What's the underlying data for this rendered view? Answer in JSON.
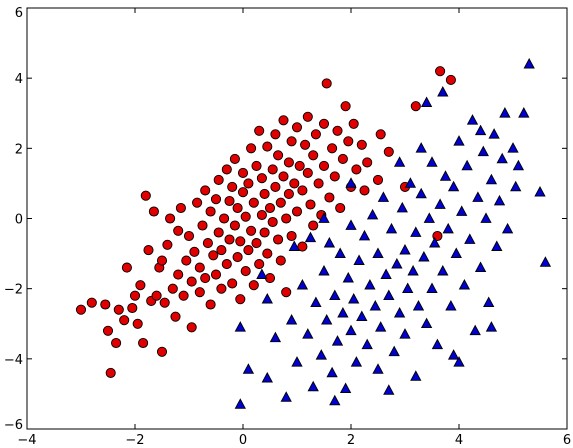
{
  "chart_data": {
    "type": "scatter",
    "title": "",
    "xlabel": "",
    "ylabel": "",
    "xlim": [
      -4,
      6
    ],
    "ylim": [
      -6,
      6
    ],
    "xticks": [
      -4,
      -2,
      0,
      2,
      4,
      6
    ],
    "yticks": [
      -6,
      -4,
      -2,
      0,
      2,
      4,
      6
    ],
    "xtick_labels": [
      "−4",
      "−2",
      "0",
      "2",
      "4",
      "6"
    ],
    "ytick_labels": [
      "−6",
      "−4",
      "−2",
      "0",
      "2",
      "4",
      "6"
    ],
    "grid": false,
    "legend": "none",
    "series": [
      {
        "marker": "circle",
        "color": "#e00000",
        "edge_color": "#000000",
        "points": [
          [
            -3.0,
            -2.6
          ],
          [
            -2.8,
            -2.4
          ],
          [
            -2.55,
            -2.45
          ],
          [
            -2.5,
            -3.2
          ],
          [
            -2.45,
            -4.4
          ],
          [
            -2.35,
            -3.55
          ],
          [
            -2.3,
            -2.6
          ],
          [
            -2.2,
            -2.9
          ],
          [
            -2.15,
            -1.4
          ],
          [
            -2.05,
            -2.55
          ],
          [
            -2.0,
            -2.2
          ],
          [
            -1.95,
            -3.0
          ],
          [
            -1.9,
            -1.9
          ],
          [
            -1.85,
            -3.55
          ],
          [
            -1.8,
            0.65
          ],
          [
            -1.75,
            -0.9
          ],
          [
            -1.7,
            -2.35
          ],
          [
            -1.65,
            0.2
          ],
          [
            -1.6,
            -2.2
          ],
          [
            -1.55,
            -1.4
          ],
          [
            -1.5,
            -1.2
          ],
          [
            -1.5,
            -3.8
          ],
          [
            -1.45,
            -2.4
          ],
          [
            -1.4,
            -0.75
          ],
          [
            -1.35,
            0.0
          ],
          [
            -1.3,
            -2.0
          ],
          [
            -1.25,
            -2.8
          ],
          [
            -1.2,
            -1.6
          ],
          [
            -1.2,
            -0.35
          ],
          [
            -1.15,
            0.3
          ],
          [
            -1.1,
            -2.2
          ],
          [
            -1.05,
            -1.2
          ],
          [
            -1.0,
            -0.5
          ],
          [
            -0.95,
            -3.1
          ],
          [
            -0.95,
            -1.8
          ],
          [
            -0.9,
            -0.95
          ],
          [
            -0.85,
            0.45
          ],
          [
            -0.8,
            -2.1
          ],
          [
            -0.8,
            -1.4
          ],
          [
            -0.75,
            -0.2
          ],
          [
            -0.7,
            0.8
          ],
          [
            -0.7,
            -1.7
          ],
          [
            -0.65,
            -0.7
          ],
          [
            -0.6,
            -2.45
          ],
          [
            -0.6,
            0.2
          ],
          [
            -0.55,
            -1.05
          ],
          [
            -0.5,
            -1.6
          ],
          [
            -0.5,
            0.55
          ],
          [
            -0.45,
            -0.4
          ],
          [
            -0.45,
            1.1
          ],
          [
            -0.4,
            -2.0
          ],
          [
            -0.4,
            -0.9
          ],
          [
            -0.35,
            0.0
          ],
          [
            -0.3,
            1.4
          ],
          [
            -0.3,
            -1.3
          ],
          [
            -0.25,
            -0.6
          ],
          [
            -0.25,
            0.5
          ],
          [
            -0.2,
            -1.85
          ],
          [
            -0.2,
            0.9
          ],
          [
            -0.15,
            -0.2
          ],
          [
            -0.15,
            1.7
          ],
          [
            -0.1,
            -1.1
          ],
          [
            -0.1,
            0.3
          ],
          [
            -0.05,
            -2.3
          ],
          [
            -0.05,
            -0.65
          ],
          [
            0.0,
            0.75
          ],
          [
            0.0,
            1.3
          ],
          [
            0.05,
            -1.5
          ],
          [
            0.05,
            0.05
          ],
          [
            0.1,
            -0.9
          ],
          [
            0.1,
            1.0
          ],
          [
            0.15,
            2.0
          ],
          [
            0.15,
            -0.35
          ],
          [
            0.2,
            -1.9
          ],
          [
            0.2,
            0.45
          ],
          [
            0.25,
            1.5
          ],
          [
            0.25,
            -0.7
          ],
          [
            0.3,
            2.5
          ],
          [
            0.3,
            -1.3
          ],
          [
            0.35,
            0.1
          ],
          [
            0.35,
            1.15
          ],
          [
            0.4,
            -0.4
          ],
          [
            0.4,
            0.7
          ],
          [
            0.45,
            2.05
          ],
          [
            0.45,
            -1.0
          ],
          [
            0.5,
            -1.7
          ],
          [
            0.5,
            0.3
          ],
          [
            0.55,
            1.4
          ],
          [
            0.55,
            -0.1
          ],
          [
            0.6,
            2.4
          ],
          [
            0.6,
            0.9
          ],
          [
            0.65,
            -0.6
          ],
          [
            0.65,
            1.8
          ],
          [
            0.7,
            0.45
          ],
          [
            0.7,
            -1.2
          ],
          [
            0.75,
            1.2
          ],
          [
            0.75,
            2.8
          ],
          [
            0.8,
            0.0
          ],
          [
            0.8,
            -2.1
          ],
          [
            0.85,
            1.6
          ],
          [
            0.85,
            0.7
          ],
          [
            0.9,
            2.2
          ],
          [
            0.9,
            -0.5
          ],
          [
            0.95,
            1.0
          ],
          [
            1.0,
            2.6
          ],
          [
            1.0,
            0.2
          ],
          [
            1.05,
            1.5
          ],
          [
            1.1,
            -0.8
          ],
          [
            1.1,
            0.8
          ],
          [
            1.15,
            2.1
          ],
          [
            1.2,
            1.3
          ],
          [
            1.2,
            2.9
          ],
          [
            1.25,
            0.4
          ],
          [
            1.3,
            1.8
          ],
          [
            1.3,
            -0.2
          ],
          [
            1.35,
            2.4
          ],
          [
            1.4,
            1.0
          ],
          [
            1.45,
            0.1
          ],
          [
            1.5,
            2.7
          ],
          [
            1.5,
            1.5
          ],
          [
            1.55,
            3.85
          ],
          [
            1.6,
            0.6
          ],
          [
            1.65,
            2.0
          ],
          [
            1.7,
            1.2
          ],
          [
            1.75,
            2.5
          ],
          [
            1.8,
            0.3
          ],
          [
            1.85,
            1.7
          ],
          [
            1.9,
            3.2
          ],
          [
            1.95,
            2.2
          ],
          [
            2.0,
            0.9
          ],
          [
            2.05,
            2.7
          ],
          [
            2.1,
            1.4
          ],
          [
            2.2,
            2.1
          ],
          [
            2.25,
            0.8
          ],
          [
            2.3,
            1.6
          ],
          [
            2.5,
            1.1
          ],
          [
            2.55,
            2.4
          ],
          [
            2.7,
            1.9
          ],
          [
            3.2,
            3.2
          ],
          [
            3.0,
            0.9
          ],
          [
            3.6,
            -0.5
          ],
          [
            3.65,
            4.2
          ],
          [
            3.85,
            3.95
          ]
        ]
      },
      {
        "marker": "triangle",
        "color": "#0000d0",
        "edge_color": "#000000",
        "points": [
          [
            -0.05,
            -5.3
          ],
          [
            -0.05,
            -3.1
          ],
          [
            0.1,
            -4.3
          ],
          [
            0.35,
            -1.6
          ],
          [
            0.45,
            -2.3
          ],
          [
            0.45,
            -4.55
          ],
          [
            0.6,
            -3.4
          ],
          [
            0.8,
            -5.1
          ],
          [
            0.9,
            -2.9
          ],
          [
            0.95,
            -0.8
          ],
          [
            1.0,
            -4.1
          ],
          [
            1.1,
            -1.9
          ],
          [
            1.2,
            -3.3
          ],
          [
            1.25,
            -0.55
          ],
          [
            1.3,
            -4.8
          ],
          [
            1.35,
            -2.4
          ],
          [
            1.45,
            -3.9
          ],
          [
            1.5,
            -1.5
          ],
          [
            1.55,
            -2.9
          ],
          [
            1.6,
            -0.7
          ],
          [
            1.65,
            -4.4
          ],
          [
            1.7,
            -2.2
          ],
          [
            1.75,
            -3.5
          ],
          [
            1.8,
            -1.0
          ],
          [
            1.85,
            -2.7
          ],
          [
            1.9,
            -4.85
          ],
          [
            1.95,
            -1.7
          ],
          [
            2.0,
            -0.2
          ],
          [
            2.0,
            -3.2
          ],
          [
            2.05,
            -2.3
          ],
          [
            2.1,
            -4.1
          ],
          [
            2.15,
            -1.2
          ],
          [
            2.2,
            -2.8
          ],
          [
            2.25,
            -0.5
          ],
          [
            2.3,
            -3.6
          ],
          [
            2.35,
            -1.9
          ],
          [
            2.4,
            0.1
          ],
          [
            2.45,
            -2.5
          ],
          [
            2.5,
            -4.3
          ],
          [
            2.5,
            -1.0
          ],
          [
            2.55,
            -3.1
          ],
          [
            2.6,
            0.6
          ],
          [
            2.65,
            -1.6
          ],
          [
            2.7,
            -2.2
          ],
          [
            2.75,
            -0.3
          ],
          [
            2.8,
            -3.8
          ],
          [
            2.85,
            -1.3
          ],
          [
            2.9,
            -2.7
          ],
          [
            2.95,
            0.3
          ],
          [
            3.0,
            -0.9
          ],
          [
            3.0,
            -3.3
          ],
          [
            3.05,
            -2.0
          ],
          [
            3.1,
            1.0
          ],
          [
            3.15,
            -1.5
          ],
          [
            3.2,
            -0.4
          ],
          [
            3.2,
            -4.5
          ],
          [
            3.25,
            -2.5
          ],
          [
            3.3,
            0.7
          ],
          [
            3.35,
            -1.1
          ],
          [
            3.4,
            -3.0
          ],
          [
            3.45,
            0.0
          ],
          [
            3.5,
            1.6
          ],
          [
            3.5,
            -2.0
          ],
          [
            3.55,
            -0.7
          ],
          [
            3.6,
            -3.6
          ],
          [
            3.65,
            0.4
          ],
          [
            3.7,
            3.6
          ],
          [
            3.7,
            -1.5
          ],
          [
            3.75,
            1.2
          ],
          [
            3.8,
            -0.3
          ],
          [
            3.85,
            -2.5
          ],
          [
            3.9,
            0.9
          ],
          [
            3.95,
            -1.0
          ],
          [
            4.0,
            2.2
          ],
          [
            4.0,
            -4.1
          ],
          [
            4.05,
            0.2
          ],
          [
            4.1,
            -1.9
          ],
          [
            4.15,
            1.5
          ],
          [
            4.2,
            -0.6
          ],
          [
            4.25,
            2.8
          ],
          [
            4.3,
            -3.2
          ],
          [
            4.35,
            0.6
          ],
          [
            4.4,
            -1.4
          ],
          [
            4.45,
            1.9
          ],
          [
            4.5,
            0.0
          ],
          [
            4.55,
            -2.4
          ],
          [
            4.6,
            1.1
          ],
          [
            4.65,
            2.4
          ],
          [
            4.7,
            -0.8
          ],
          [
            4.75,
            0.5
          ],
          [
            4.8,
            1.7
          ],
          [
            4.85,
            3.0
          ],
          [
            4.9,
            -0.3
          ],
          [
            5.0,
            2.0
          ],
          [
            5.05,
            0.9
          ],
          [
            5.1,
            1.5
          ],
          [
            5.2,
            3.0
          ],
          [
            5.3,
            4.4
          ],
          [
            5.5,
            0.75
          ],
          [
            5.6,
            -1.25
          ],
          [
            4.6,
            -3.1
          ],
          [
            2.0,
            1.0
          ],
          [
            1.5,
            0.0
          ],
          [
            1.7,
            -5.2
          ],
          [
            2.7,
            -4.9
          ],
          [
            3.9,
            -3.9
          ],
          [
            4.4,
            2.5
          ],
          [
            3.3,
            2.0
          ],
          [
            2.9,
            1.6
          ],
          [
            3.4,
            3.3
          ]
        ]
      }
    ]
  }
}
